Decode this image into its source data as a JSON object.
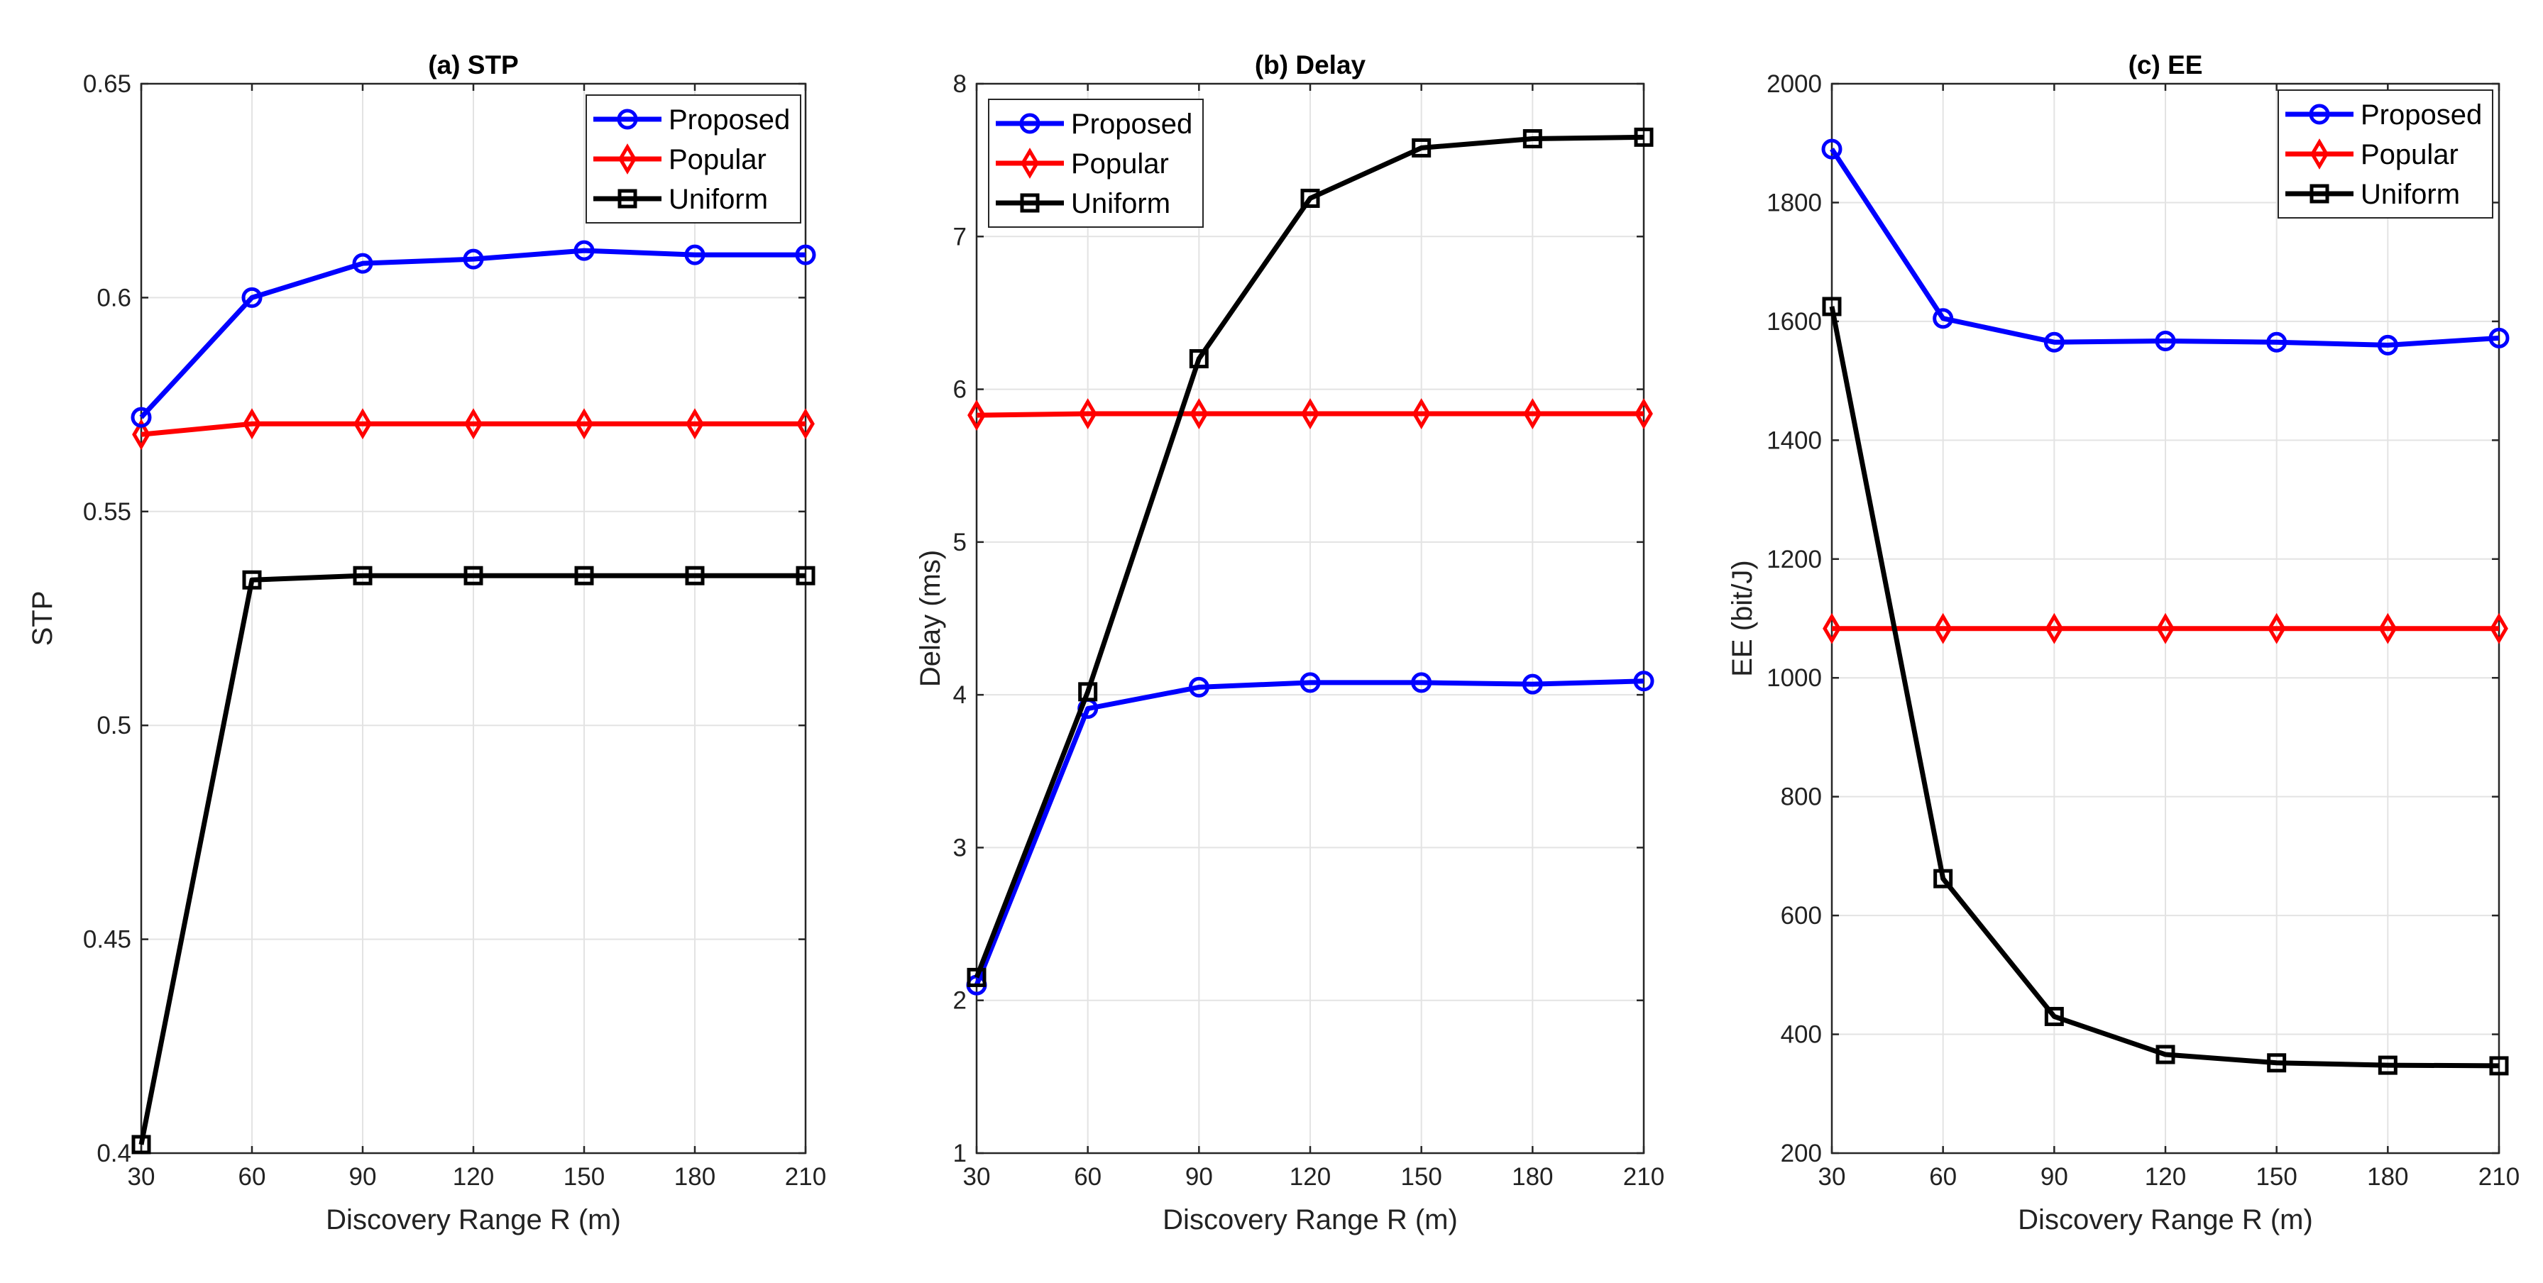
{
  "chart_data": [
    {
      "type": "line",
      "title": "(a) STP",
      "xlabel": "Discovery Range R (m)",
      "ylabel": "STP",
      "x": [
        30,
        60,
        90,
        120,
        150,
        180,
        210
      ],
      "xlim": [
        30,
        210
      ],
      "ylim": [
        0.4,
        0.65
      ],
      "yticks": [
        0.4,
        0.45,
        0.5,
        0.55,
        0.6,
        0.65
      ],
      "ytick_labels": [
        "0.4",
        "0.45",
        "0.5",
        "0.55",
        "0.6",
        "0.65"
      ],
      "grid": true,
      "legend": "top-right",
      "series": [
        {
          "name": "Proposed",
          "color": "#0000ff",
          "marker": "circle",
          "values": [
            0.572,
            0.6,
            0.608,
            0.609,
            0.611,
            0.61,
            0.61
          ]
        },
        {
          "name": "Popular",
          "color": "#ff0000",
          "marker": "diamond",
          "values": [
            0.568,
            0.5705,
            0.5705,
            0.5705,
            0.5705,
            0.5705,
            0.5705
          ]
        },
        {
          "name": "Uniform",
          "color": "#000000",
          "marker": "square",
          "values": [
            0.402,
            0.534,
            0.535,
            0.535,
            0.535,
            0.535,
            0.535
          ]
        }
      ]
    },
    {
      "type": "line",
      "title": "(b) Delay",
      "xlabel": "Discovery Range R (m)",
      "ylabel": "Delay (ms)",
      "x": [
        30,
        60,
        90,
        120,
        150,
        180,
        210
      ],
      "xlim": [
        30,
        210
      ],
      "ylim": [
        1,
        8
      ],
      "yticks": [
        1,
        2,
        3,
        4,
        5,
        6,
        7,
        8
      ],
      "ytick_labels": [
        "1",
        "2",
        "3",
        "4",
        "5",
        "6",
        "7",
        "8"
      ],
      "grid": true,
      "legend": "top-left",
      "series": [
        {
          "name": "Proposed",
          "color": "#0000ff",
          "marker": "circle",
          "values": [
            2.1,
            3.91,
            4.05,
            4.08,
            4.08,
            4.07,
            4.09
          ]
        },
        {
          "name": "Popular",
          "color": "#ff0000",
          "marker": "diamond",
          "values": [
            5.83,
            5.84,
            5.84,
            5.84,
            5.84,
            5.84,
            5.84
          ]
        },
        {
          "name": "Uniform",
          "color": "#000000",
          "marker": "square",
          "values": [
            2.15,
            4.02,
            6.2,
            7.25,
            7.58,
            7.64,
            7.65
          ]
        }
      ]
    },
    {
      "type": "line",
      "title": "(c) EE",
      "xlabel": "Discovery Range R (m)",
      "ylabel": "EE (bit/J)",
      "x": [
        30,
        60,
        90,
        120,
        150,
        180,
        210
      ],
      "xlim": [
        30,
        210
      ],
      "ylim": [
        200,
        2000
      ],
      "yticks": [
        200,
        400,
        600,
        800,
        1000,
        1200,
        1400,
        1600,
        1800,
        2000
      ],
      "ytick_labels": [
        "200",
        "400",
        "600",
        "800",
        "1000",
        "1200",
        "1400",
        "1600",
        "1800",
        "2000"
      ],
      "grid": true,
      "legend": "top-right",
      "series": [
        {
          "name": "Proposed",
          "color": "#0000ff",
          "marker": "circle",
          "values": [
            1890,
            1605,
            1565,
            1567,
            1565,
            1560,
            1572
          ]
        },
        {
          "name": "Popular",
          "color": "#ff0000",
          "marker": "diamond",
          "values": [
            1083,
            1083,
            1083,
            1083,
            1083,
            1083,
            1083
          ]
        },
        {
          "name": "Uniform",
          "color": "#000000",
          "marker": "square",
          "values": [
            1625,
            662,
            430,
            366,
            352,
            348,
            347
          ]
        }
      ]
    }
  ]
}
